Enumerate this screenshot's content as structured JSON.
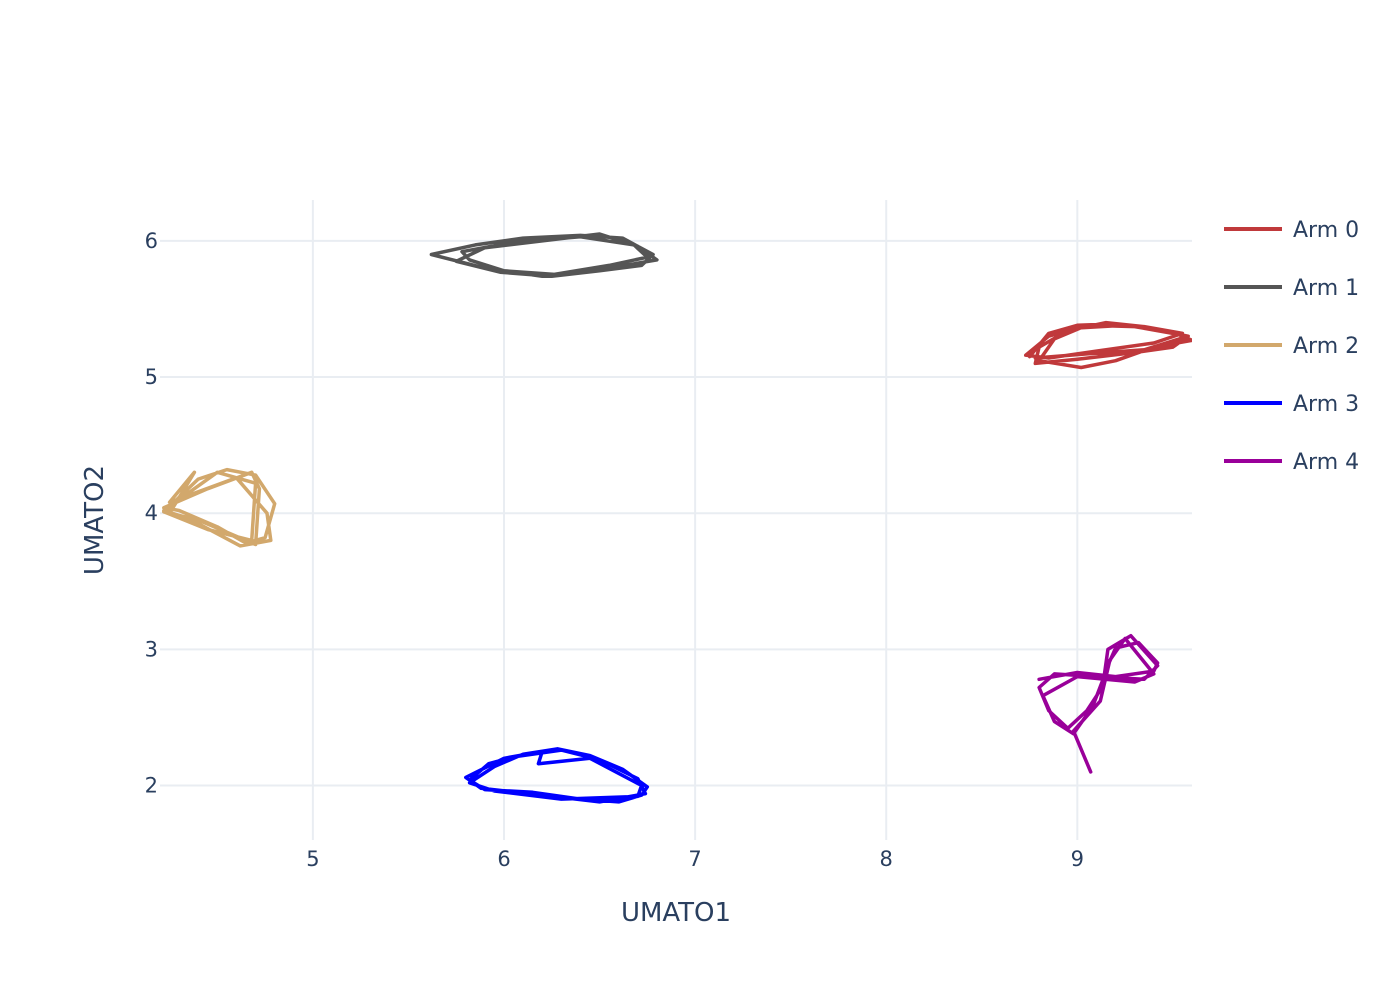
{
  "chart_data": {
    "type": "line",
    "title": "",
    "xlabel": "UMATO1",
    "ylabel": "UMATO2",
    "xlim": [
      4.2,
      9.6
    ],
    "ylim": [
      1.6,
      6.3
    ],
    "xticks": [
      5,
      6,
      7,
      8,
      9
    ],
    "yticks": [
      2,
      3,
      4,
      5,
      6
    ],
    "grid": true,
    "legend_position": "top-right",
    "series": [
      {
        "name": "Arm 0",
        "color": "#c0393b",
        "points": [
          [
            8.75,
            5.15
          ],
          [
            8.85,
            5.32
          ],
          [
            9.0,
            5.38
          ],
          [
            9.2,
            5.39
          ],
          [
            9.4,
            5.35
          ],
          [
            9.58,
            5.3
          ],
          [
            9.5,
            5.22
          ],
          [
            9.3,
            5.18
          ],
          [
            9.0,
            5.13
          ],
          [
            8.78,
            5.1
          ],
          [
            8.8,
            5.22
          ],
          [
            8.95,
            5.34
          ],
          [
            9.15,
            5.4
          ],
          [
            9.35,
            5.37
          ],
          [
            9.55,
            5.32
          ],
          [
            9.4,
            5.25
          ],
          [
            9.1,
            5.19
          ],
          [
            8.85,
            5.14
          ],
          [
            8.73,
            5.16
          ],
          [
            8.85,
            5.3
          ],
          [
            9.0,
            5.36
          ],
          [
            9.25,
            5.38
          ],
          [
            9.5,
            5.33
          ],
          [
            9.6,
            5.27
          ],
          [
            9.4,
            5.22
          ],
          [
            9.2,
            5.12
          ],
          [
            9.02,
            5.07
          ],
          [
            8.8,
            5.12
          ],
          [
            8.88,
            5.28
          ],
          [
            9.05,
            5.38
          ],
          [
            9.3,
            5.37
          ],
          [
            9.58,
            5.3
          ],
          [
            9.35,
            5.2
          ],
          [
            9.05,
            5.17
          ],
          [
            8.78,
            5.14
          ]
        ]
      },
      {
        "name": "Arm 1",
        "color": "#555555",
        "points": [
          [
            5.62,
            5.9
          ],
          [
            5.85,
            5.97
          ],
          [
            6.1,
            6.02
          ],
          [
            6.4,
            6.04
          ],
          [
            6.62,
            6.02
          ],
          [
            6.78,
            5.9
          ],
          [
            6.72,
            5.82
          ],
          [
            6.5,
            5.78
          ],
          [
            6.25,
            5.74
          ],
          [
            5.98,
            5.77
          ],
          [
            5.75,
            5.85
          ],
          [
            5.9,
            5.95
          ],
          [
            6.2,
            6.0
          ],
          [
            6.5,
            6.05
          ],
          [
            6.7,
            5.96
          ],
          [
            6.8,
            5.86
          ],
          [
            6.55,
            5.8
          ],
          [
            6.3,
            5.75
          ],
          [
            6.0,
            5.78
          ],
          [
            5.82,
            5.86
          ],
          [
            5.78,
            5.92
          ],
          [
            6.05,
            5.99
          ],
          [
            6.4,
            6.03
          ],
          [
            6.68,
            5.97
          ],
          [
            6.75,
            5.88
          ],
          [
            6.55,
            5.82
          ],
          [
            6.2,
            5.74
          ],
          [
            5.9,
            5.8
          ],
          [
            5.62,
            5.9
          ]
        ]
      },
      {
        "name": "Arm 2",
        "color": "#d2a86c",
        "points": [
          [
            4.22,
            4.01
          ],
          [
            4.4,
            4.25
          ],
          [
            4.55,
            4.32
          ],
          [
            4.7,
            4.28
          ],
          [
            4.8,
            4.07
          ],
          [
            4.75,
            3.82
          ],
          [
            4.65,
            3.78
          ],
          [
            4.5,
            3.9
          ],
          [
            4.3,
            4.02
          ],
          [
            4.22,
            4.04
          ],
          [
            4.45,
            4.18
          ],
          [
            4.68,
            4.3
          ],
          [
            4.72,
            4.18
          ],
          [
            4.7,
            3.77
          ],
          [
            4.4,
            3.95
          ],
          [
            4.25,
            4.0
          ],
          [
            4.38,
            4.3
          ],
          [
            4.25,
            4.08
          ],
          [
            4.6,
            4.26
          ],
          [
            4.76,
            4.0
          ],
          [
            4.78,
            3.8
          ],
          [
            4.62,
            3.76
          ],
          [
            4.35,
            3.96
          ],
          [
            4.22,
            4.02
          ],
          [
            4.5,
            4.3
          ],
          [
            4.7,
            4.22
          ],
          [
            4.68,
            3.8
          ],
          [
            4.45,
            3.88
          ],
          [
            4.22,
            4.01
          ]
        ]
      },
      {
        "name": "Arm 3",
        "color": "#0000ff",
        "points": [
          [
            5.82,
            2.02
          ],
          [
            5.95,
            2.14
          ],
          [
            6.1,
            2.23
          ],
          [
            6.28,
            2.27
          ],
          [
            6.45,
            2.22
          ],
          [
            6.62,
            2.12
          ],
          [
            6.75,
            1.99
          ],
          [
            6.72,
            1.93
          ],
          [
            6.6,
            1.88
          ],
          [
            6.4,
            1.9
          ],
          [
            6.15,
            1.95
          ],
          [
            5.9,
            1.97
          ],
          [
            5.82,
            2.04
          ],
          [
            5.92,
            2.16
          ],
          [
            6.05,
            2.21
          ],
          [
            6.3,
            2.26
          ],
          [
            6.5,
            2.19
          ],
          [
            6.7,
            2.05
          ],
          [
            6.74,
            1.94
          ],
          [
            6.5,
            1.88
          ],
          [
            6.2,
            1.93
          ],
          [
            5.88,
            1.98
          ],
          [
            5.8,
            2.06
          ],
          [
            6.0,
            2.2
          ],
          [
            6.2,
            2.25
          ],
          [
            6.18,
            2.16
          ],
          [
            6.45,
            2.2
          ],
          [
            6.72,
            2.0
          ],
          [
            6.7,
            1.92
          ],
          [
            6.3,
            1.9
          ],
          [
            5.95,
            1.96
          ],
          [
            5.82,
            2.02
          ]
        ]
      },
      {
        "name": "Arm 4",
        "color": "#990099",
        "points": [
          [
            8.8,
            2.78
          ],
          [
            9.0,
            2.83
          ],
          [
            9.2,
            2.8
          ],
          [
            9.4,
            2.84
          ],
          [
            9.42,
            2.9
          ],
          [
            9.32,
            3.05
          ],
          [
            9.2,
            3.01
          ],
          [
            9.15,
            2.85
          ],
          [
            9.12,
            2.7
          ],
          [
            9.05,
            2.55
          ],
          [
            8.95,
            2.42
          ],
          [
            8.85,
            2.55
          ],
          [
            8.8,
            2.72
          ],
          [
            8.88,
            2.82
          ],
          [
            9.1,
            2.8
          ],
          [
            9.35,
            2.78
          ],
          [
            9.42,
            2.88
          ],
          [
            9.28,
            3.1
          ],
          [
            9.16,
            3.0
          ],
          [
            9.14,
            2.8
          ],
          [
            9.08,
            2.58
          ],
          [
            8.98,
            2.38
          ],
          [
            8.88,
            2.47
          ],
          [
            8.82,
            2.66
          ],
          [
            9.0,
            2.8
          ],
          [
            9.3,
            2.76
          ],
          [
            9.4,
            2.82
          ],
          [
            9.25,
            3.08
          ],
          [
            9.17,
            2.92
          ],
          [
            9.12,
            2.62
          ],
          [
            8.98,
            2.4
          ],
          [
            9.07,
            2.1
          ]
        ]
      }
    ]
  },
  "legend": {
    "items": [
      {
        "label": "Arm 0",
        "color": "#c0393b"
      },
      {
        "label": "Arm 1",
        "color": "#555555"
      },
      {
        "label": "Arm 2",
        "color": "#d2a86c"
      },
      {
        "label": "Arm 3",
        "color": "#0000ff"
      },
      {
        "label": "Arm 4",
        "color": "#990099"
      }
    ]
  }
}
